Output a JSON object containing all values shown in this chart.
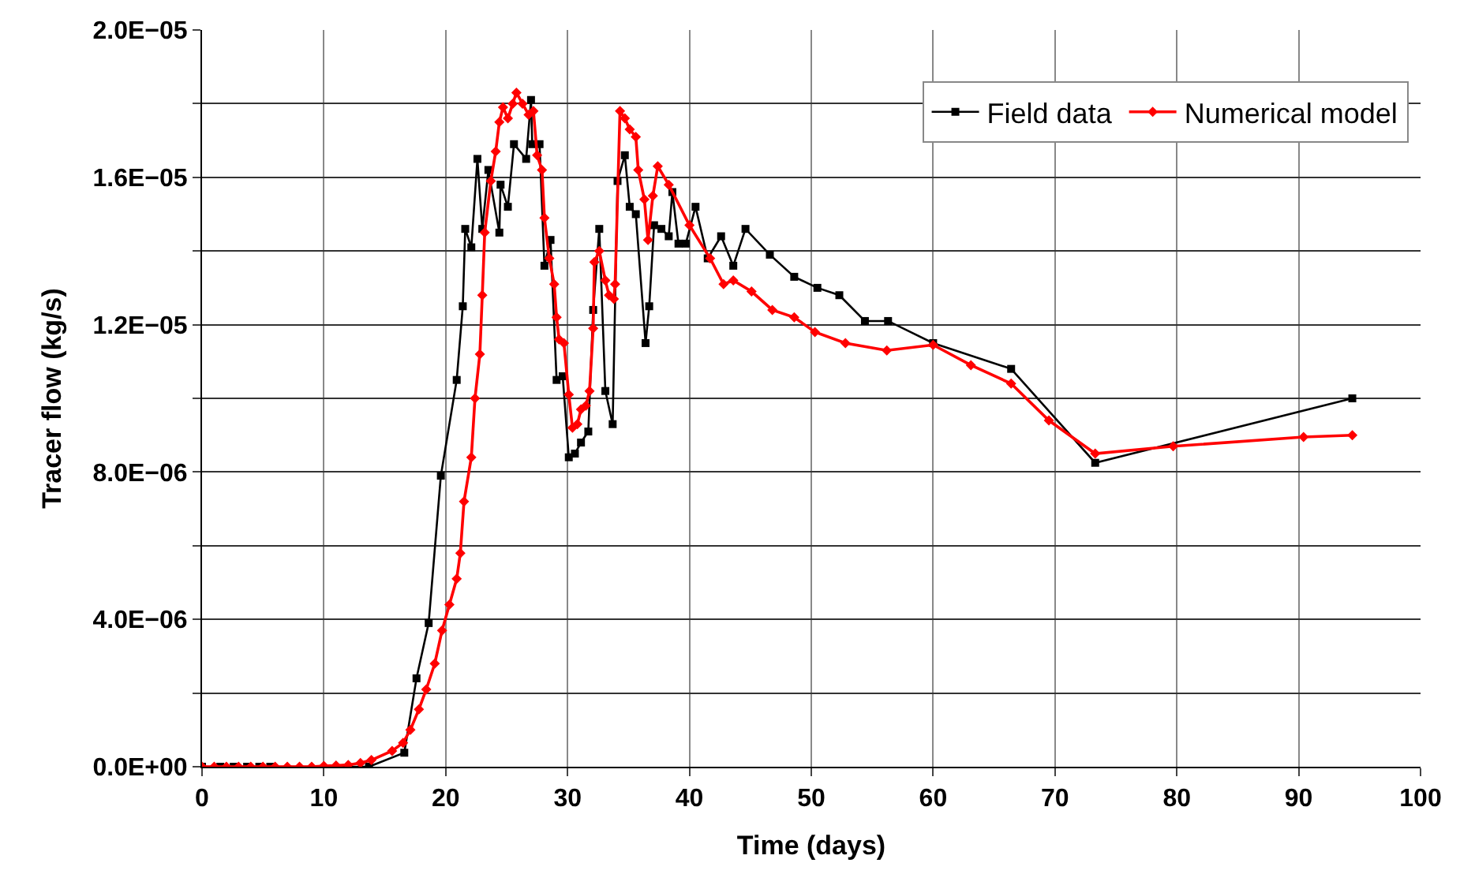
{
  "chart_data": {
    "type": "line",
    "xlabel": "Time (days)",
    "ylabel": "Tracer flow (kg/s)",
    "xlim": [
      0,
      100
    ],
    "xticks": [
      0,
      10,
      20,
      30,
      40,
      50,
      60,
      70,
      80,
      90,
      100
    ],
    "ylim": [
      0,
      2e-05
    ],
    "yticks": [
      {
        "value": 0,
        "label": "0.0E+00"
      },
      {
        "value": 2e-06,
        "label": null
      },
      {
        "value": 4e-06,
        "label": "4.0E−06"
      },
      {
        "value": 6e-06,
        "label": null
      },
      {
        "value": 8e-06,
        "label": "8.0E−06"
      },
      {
        "value": 1e-05,
        "label": null
      },
      {
        "value": 1.2e-05,
        "label": "1.2E−05"
      },
      {
        "value": 1.4e-05,
        "label": null
      },
      {
        "value": 1.6e-05,
        "label": "1.6E−05"
      },
      {
        "value": 1.8e-05,
        "label": null
      },
      {
        "value": 2e-05,
        "label": "2.0E−05"
      }
    ],
    "grid": true,
    "legend": "top right",
    "series": [
      {
        "name": "Field data",
        "color": "#000000",
        "marker": "square",
        "x": [
          0,
          1.5,
          2.6,
          3.7,
          4.7,
          5.6,
          13.7,
          16.6,
          17.6,
          18.6,
          19.6,
          20.9,
          21.4,
          21.6,
          22.1,
          22.6,
          23.0,
          23.5,
          24.4,
          24.5,
          25.1,
          25.6,
          26.6,
          27.0,
          27.1,
          27.7,
          28.1,
          28.6,
          29.1,
          29.6,
          30.1,
          30.6,
          31.1,
          31.7,
          32.1,
          32.6,
          33.1,
          33.7,
          34.1,
          34.7,
          35.1,
          35.6,
          36.4,
          36.7,
          37.1,
          37.7,
          38.3,
          38.6,
          39.1,
          39.7,
          40.5,
          41.5,
          42.6,
          43.6,
          44.6,
          46.6,
          48.6,
          50.5,
          52.3,
          54.4,
          56.3,
          60.0,
          66.4,
          73.3,
          94.4
        ],
        "values": [
          0,
          0,
          0,
          0,
          0,
          0,
          0,
          3.8e-07,
          2.4e-06,
          3.9e-06,
          7.9e-06,
          1.05e-05,
          1.25e-05,
          1.46e-05,
          1.41e-05,
          1.65e-05,
          1.46e-05,
          1.62e-05,
          1.45e-05,
          1.58e-05,
          1.52e-05,
          1.69e-05,
          1.65e-05,
          1.81e-05,
          1.69e-05,
          1.69e-05,
          1.36e-05,
          1.43e-05,
          1.05e-05,
          1.06e-05,
          8.4e-06,
          8.5e-06,
          8.8e-06,
          9.1e-06,
          1.24e-05,
          1.46e-05,
          1.02e-05,
          9.3e-06,
          1.59e-05,
          1.66e-05,
          1.52e-05,
          1.5e-05,
          1.15e-05,
          1.25e-05,
          1.47e-05,
          1.46e-05,
          1.44e-05,
          1.56e-05,
          1.42e-05,
          1.42e-05,
          1.52e-05,
          1.38e-05,
          1.44e-05,
          1.36e-05,
          1.46e-05,
          1.39e-05,
          1.33e-05,
          1.3e-05,
          1.28e-05,
          1.21e-05,
          1.21e-05,
          1.15e-05,
          1.08e-05,
          8.25e-06,
          1e-05
        ]
      },
      {
        "name": "Numerical model",
        "color": "#ff0000",
        "marker": "diamond",
        "x": [
          0,
          1,
          2,
          3,
          4,
          5,
          6,
          7,
          8,
          9,
          10,
          11,
          12,
          13,
          13.9,
          15.6,
          16.5,
          17.1,
          17.8,
          18.4,
          19.1,
          19.7,
          20.3,
          20.9,
          21.2,
          21.5,
          22.1,
          22.4,
          22.8,
          23.0,
          23.2,
          23.7,
          24.1,
          24.4,
          24.7,
          25.1,
          25.5,
          25.8,
          26.3,
          26.8,
          27.2,
          27.5,
          27.9,
          28.1,
          28.5,
          28.9,
          29.1,
          29.3,
          29.7,
          30.1,
          30.4,
          30.8,
          31.1,
          31.5,
          31.8,
          32.1,
          32.2,
          32.6,
          33.1,
          33.4,
          33.8,
          33.9,
          34.3,
          34.7,
          35.1,
          35.6,
          35.8,
          36.3,
          36.6,
          37.0,
          37.4,
          38.3,
          40.0,
          41.7,
          42.8,
          43.6,
          45.1,
          46.8,
          48.6,
          50.3,
          52.8,
          56.2,
          60.0,
          63.1,
          66.4,
          69.5,
          73.3,
          79.7,
          90.4,
          94.4
        ],
        "values": [
          0,
          0,
          0,
          0,
          0,
          0,
          0,
          0,
          0,
          0,
          2e-08,
          3e-08,
          5e-08,
          1e-07,
          1.8e-07,
          4.3e-07,
          6.5e-07,
          1e-06,
          1.56e-06,
          2.1e-06,
          2.8e-06,
          3.7e-06,
          4.4e-06,
          5.1e-06,
          5.8e-06,
          7.2e-06,
          8.4e-06,
          1e-05,
          1.12e-05,
          1.28e-05,
          1.45e-05,
          1.59e-05,
          1.67e-05,
          1.75e-05,
          1.79e-05,
          1.76e-05,
          1.8e-05,
          1.83e-05,
          1.8e-05,
          1.77e-05,
          1.78e-05,
          1.66e-05,
          1.62e-05,
          1.49e-05,
          1.38e-05,
          1.31e-05,
          1.22e-05,
          1.16e-05,
          1.15e-05,
          1.01e-05,
          9.2e-06,
          9.3e-06,
          9.7e-06,
          9.8e-06,
          1.02e-05,
          1.19e-05,
          1.37e-05,
          1.4e-05,
          1.32e-05,
          1.28e-05,
          1.27e-05,
          1.31e-05,
          1.78e-05,
          1.76e-05,
          1.73e-05,
          1.71e-05,
          1.62e-05,
          1.54e-05,
          1.43e-05,
          1.55e-05,
          1.63e-05,
          1.58e-05,
          1.47e-05,
          1.38e-05,
          1.31e-05,
          1.32e-05,
          1.29e-05,
          1.24e-05,
          1.22e-05,
          1.18e-05,
          1.15e-05,
          1.13e-05,
          1.145e-05,
          1.09e-05,
          1.04e-05,
          9.4e-06,
          8.5e-06,
          8.7e-06,
          8.95e-06,
          9e-06
        ]
      }
    ]
  }
}
